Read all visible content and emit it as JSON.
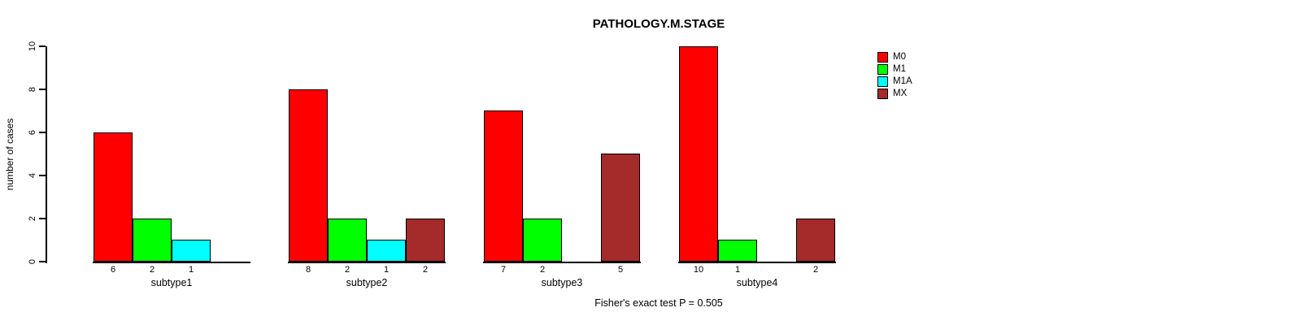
{
  "chart_data": {
    "type": "bar",
    "title": "PATHOLOGY.M.STAGE",
    "ylabel": "number of cases",
    "xlabel": "",
    "categories": [
      "subtype1",
      "subtype2",
      "subtype3",
      "subtype4"
    ],
    "series": [
      {
        "name": "M0",
        "color": "#ff0000",
        "values": [
          6,
          8,
          7,
          10
        ]
      },
      {
        "name": "M1",
        "color": "#00ff00",
        "values": [
          2,
          2,
          2,
          1
        ]
      },
      {
        "name": "M1A",
        "color": "#00ffff",
        "values": [
          1,
          1,
          0,
          0
        ]
      },
      {
        "name": "MX",
        "color": "#a52a2a",
        "values": [
          0,
          2,
          5,
          2
        ]
      }
    ],
    "ylim": [
      0,
      10
    ],
    "yticks": [
      "0",
      "2",
      "4",
      "6",
      "8",
      "10"
    ],
    "grid": false,
    "legend_position": "right",
    "value_labels": "count shown under each nonzero bar, zero bars omitted",
    "annotation": "Fisher's exact test P = 0.505"
  }
}
